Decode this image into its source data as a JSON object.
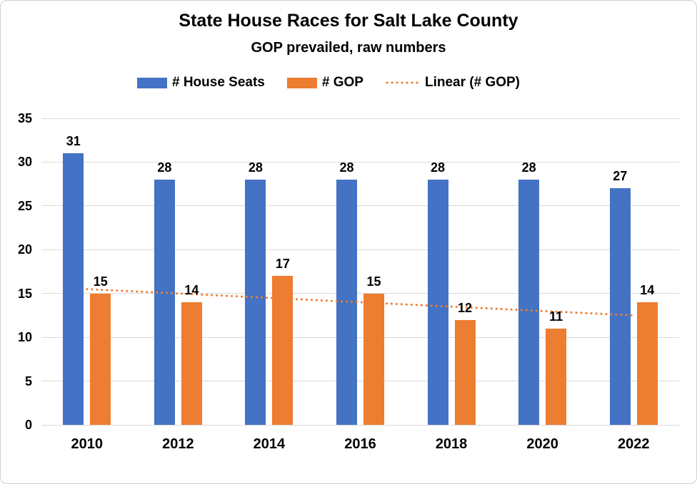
{
  "chart_data": {
    "type": "bar",
    "title": "State House Races for Salt Lake County",
    "subtitle": "GOP prevailed, raw numbers",
    "categories": [
      "2010",
      "2012",
      "2014",
      "2016",
      "2018",
      "2020",
      "2022"
    ],
    "series": [
      {
        "name": "# House Seats",
        "color": "#4472C4",
        "values": [
          31,
          28,
          28,
          28,
          28,
          28,
          27
        ]
      },
      {
        "name": "# GOP",
        "color": "#ED7D31",
        "values": [
          15,
          14,
          17,
          15,
          12,
          11,
          14
        ]
      }
    ],
    "trendline": {
      "label": "Linear (# GOP)",
      "for_series": "# GOP",
      "color": "#ED7D31",
      "style": "dotted",
      "start_value": 15.5,
      "end_value": 12.5,
      "slope_per_category": -0.5
    },
    "ylim": [
      0,
      35
    ],
    "yticks": [
      0,
      5,
      10,
      15,
      20,
      25,
      30,
      35
    ],
    "grid": true,
    "gridline_color": "#D9D9D9",
    "legend_position": "top",
    "data_labels": true,
    "text_color": "#000000",
    "background": "#FFFFFF"
  }
}
